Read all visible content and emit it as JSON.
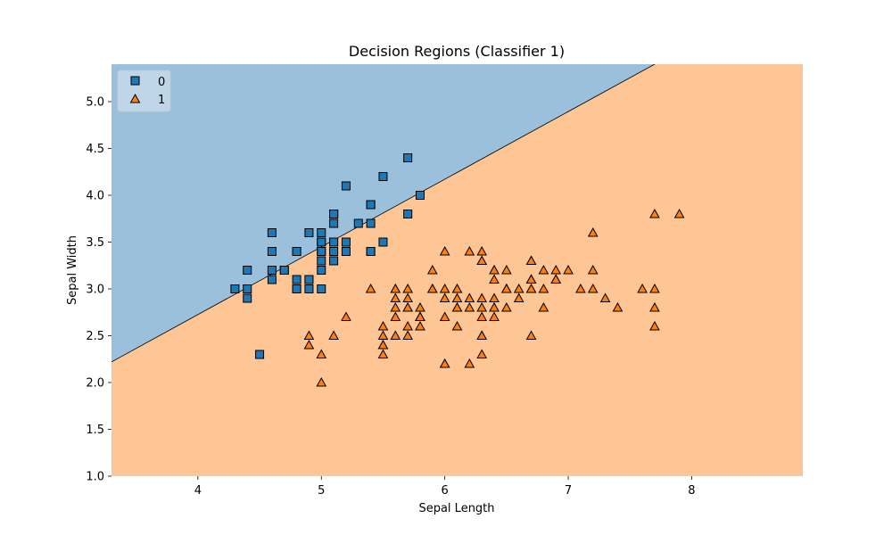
{
  "chart_data": {
    "type": "scatter",
    "title": "Decision Regions (Classifier 1)",
    "xlabel": "Sepal Length",
    "ylabel": "Sepal Width",
    "xlim": [
      3.3,
      8.9
    ],
    "ylim": [
      1.0,
      5.4
    ],
    "x_ticks": [
      4,
      5,
      6,
      7,
      8
    ],
    "y_ticks": [
      1.0,
      1.5,
      2.0,
      2.5,
      3.0,
      3.5,
      4.0,
      4.5,
      5.0
    ],
    "grid": false,
    "legend_position": "top-left",
    "region_colors": {
      "0": "#9bc0dc",
      "1": "#fec595"
    },
    "boundary": {
      "x": [
        3.3,
        7.7
      ],
      "y": [
        2.22,
        5.4
      ]
    },
    "series": [
      {
        "name": "0",
        "marker": "square",
        "color": "#1f77b4",
        "points": [
          [
            5.1,
            3.5
          ],
          [
            4.9,
            3.0
          ],
          [
            4.7,
            3.2
          ],
          [
            4.6,
            3.1
          ],
          [
            5.0,
            3.6
          ],
          [
            5.4,
            3.9
          ],
          [
            4.6,
            3.4
          ],
          [
            5.0,
            3.4
          ],
          [
            4.4,
            2.9
          ],
          [
            4.9,
            3.1
          ],
          [
            5.4,
            3.7
          ],
          [
            4.8,
            3.4
          ],
          [
            4.8,
            3.0
          ],
          [
            4.3,
            3.0
          ],
          [
            5.8,
            4.0
          ],
          [
            5.7,
            4.4
          ],
          [
            5.4,
            3.9
          ],
          [
            5.1,
            3.5
          ],
          [
            5.7,
            3.8
          ],
          [
            5.1,
            3.8
          ],
          [
            5.4,
            3.4
          ],
          [
            5.1,
            3.7
          ],
          [
            4.6,
            3.6
          ],
          [
            5.1,
            3.3
          ],
          [
            4.8,
            3.4
          ],
          [
            5.0,
            3.0
          ],
          [
            5.0,
            3.4
          ],
          [
            5.2,
            3.5
          ],
          [
            5.2,
            3.4
          ],
          [
            4.7,
            3.2
          ],
          [
            4.8,
            3.1
          ],
          [
            5.4,
            3.4
          ],
          [
            5.2,
            4.1
          ],
          [
            5.5,
            4.2
          ],
          [
            4.9,
            3.1
          ],
          [
            5.0,
            3.2
          ],
          [
            5.5,
            3.5
          ],
          [
            4.9,
            3.6
          ],
          [
            4.4,
            3.0
          ],
          [
            5.1,
            3.4
          ],
          [
            5.0,
            3.5
          ],
          [
            4.5,
            2.3
          ],
          [
            4.4,
            3.2
          ],
          [
            5.0,
            3.5
          ],
          [
            5.1,
            3.8
          ],
          [
            4.8,
            3.0
          ],
          [
            5.1,
            3.8
          ],
          [
            4.6,
            3.2
          ],
          [
            5.3,
            3.7
          ],
          [
            5.0,
            3.3
          ]
        ]
      },
      {
        "name": "1",
        "marker": "triangle",
        "color": "#ff7f0e",
        "points": [
          [
            7.0,
            3.2
          ],
          [
            6.4,
            3.2
          ],
          [
            6.9,
            3.1
          ],
          [
            5.5,
            2.3
          ],
          [
            6.5,
            2.8
          ],
          [
            5.7,
            2.8
          ],
          [
            6.3,
            3.3
          ],
          [
            4.9,
            2.4
          ],
          [
            6.6,
            2.9
          ],
          [
            5.2,
            2.7
          ],
          [
            5.0,
            2.0
          ],
          [
            5.9,
            3.0
          ],
          [
            6.0,
            2.2
          ],
          [
            6.1,
            2.9
          ],
          [
            5.6,
            2.9
          ],
          [
            6.7,
            3.1
          ],
          [
            5.6,
            3.0
          ],
          [
            5.8,
            2.7
          ],
          [
            6.2,
            2.2
          ],
          [
            5.6,
            2.5
          ],
          [
            5.9,
            3.2
          ],
          [
            6.1,
            2.8
          ],
          [
            6.3,
            2.5
          ],
          [
            6.1,
            2.8
          ],
          [
            6.4,
            2.9
          ],
          [
            6.6,
            3.0
          ],
          [
            6.8,
            2.8
          ],
          [
            6.7,
            3.0
          ],
          [
            6.0,
            2.9
          ],
          [
            5.7,
            2.6
          ],
          [
            5.5,
            2.4
          ],
          [
            5.5,
            2.4
          ],
          [
            5.8,
            2.7
          ],
          [
            6.0,
            2.7
          ],
          [
            5.4,
            3.0
          ],
          [
            6.0,
            3.4
          ],
          [
            6.7,
            3.1
          ],
          [
            6.3,
            2.3
          ],
          [
            5.6,
            3.0
          ],
          [
            5.5,
            2.5
          ],
          [
            5.5,
            2.6
          ],
          [
            6.1,
            3.0
          ],
          [
            5.8,
            2.6
          ],
          [
            5.0,
            2.3
          ],
          [
            5.6,
            2.7
          ],
          [
            5.7,
            3.0
          ],
          [
            5.7,
            2.9
          ],
          [
            6.2,
            2.9
          ],
          [
            5.1,
            2.5
          ],
          [
            5.7,
            2.8
          ],
          [
            6.3,
            3.3
          ],
          [
            5.8,
            2.7
          ],
          [
            7.1,
            3.0
          ],
          [
            6.3,
            2.9
          ],
          [
            6.5,
            3.0
          ],
          [
            7.6,
            3.0
          ],
          [
            4.9,
            2.5
          ],
          [
            7.3,
            2.9
          ],
          [
            6.7,
            2.5
          ],
          [
            7.2,
            3.6
          ],
          [
            6.5,
            3.2
          ],
          [
            6.4,
            2.7
          ],
          [
            6.8,
            3.0
          ],
          [
            5.7,
            2.5
          ],
          [
            5.8,
            2.8
          ],
          [
            6.4,
            3.2
          ],
          [
            6.5,
            3.0
          ],
          [
            7.7,
            3.8
          ],
          [
            7.7,
            2.6
          ],
          [
            6.0,
            2.2
          ],
          [
            6.9,
            3.2
          ],
          [
            5.6,
            2.8
          ],
          [
            7.7,
            2.8
          ],
          [
            6.3,
            2.7
          ],
          [
            6.7,
            3.3
          ],
          [
            7.2,
            3.2
          ],
          [
            6.2,
            2.8
          ],
          [
            6.1,
            3.0
          ],
          [
            6.4,
            2.8
          ],
          [
            7.2,
            3.0
          ],
          [
            7.4,
            2.8
          ],
          [
            7.9,
            3.8
          ],
          [
            6.4,
            2.8
          ],
          [
            6.3,
            2.8
          ],
          [
            6.1,
            2.6
          ],
          [
            7.7,
            3.0
          ],
          [
            6.3,
            3.4
          ],
          [
            6.4,
            3.1
          ],
          [
            6.0,
            3.0
          ],
          [
            6.9,
            3.1
          ],
          [
            6.7,
            3.1
          ],
          [
            6.9,
            3.1
          ],
          [
            5.8,
            2.7
          ],
          [
            6.8,
            3.2
          ],
          [
            6.7,
            3.3
          ],
          [
            6.7,
            3.0
          ],
          [
            6.3,
            2.5
          ],
          [
            6.5,
            3.0
          ],
          [
            6.2,
            3.4
          ],
          [
            5.9,
            3.0
          ]
        ]
      }
    ]
  }
}
